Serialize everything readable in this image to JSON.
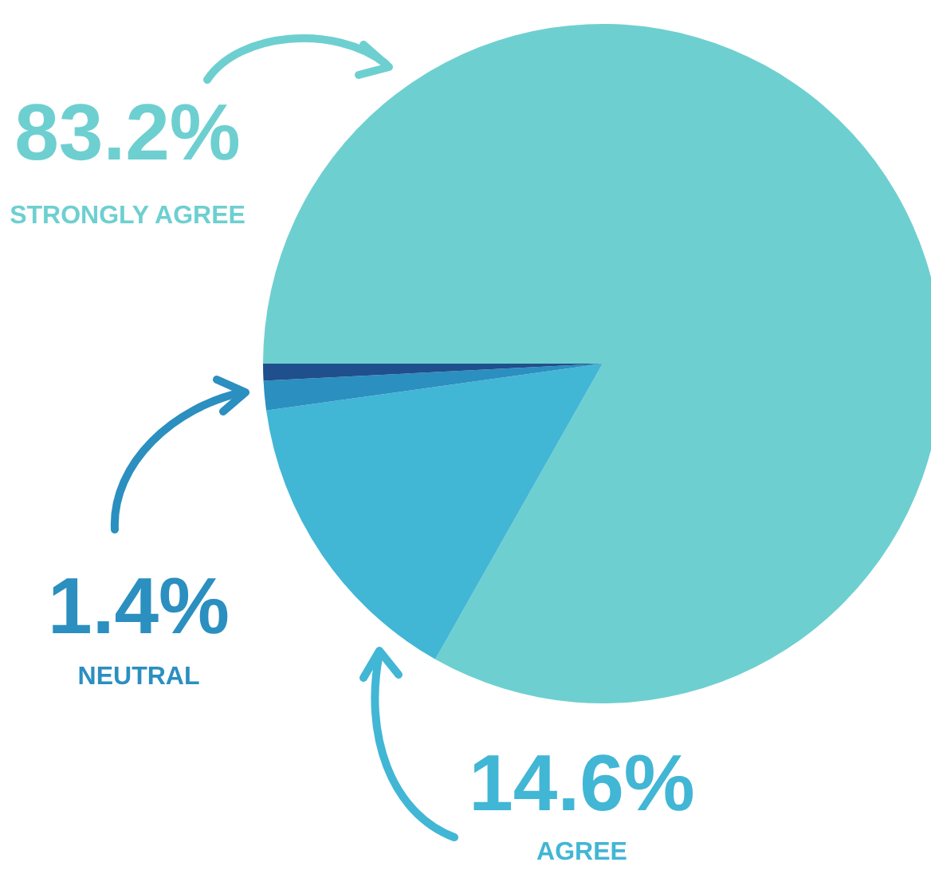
{
  "chart_data": {
    "type": "pie",
    "categories": [
      "STRONGLY AGREE",
      "AGREE",
      "NEUTRAL",
      null
    ],
    "values": [
      83.2,
      14.6,
      1.4,
      0.8
    ],
    "colors": [
      "#6ecfd0",
      "#42b6d5",
      "#2b8fc0",
      "#1f4f8c"
    ],
    "value_labels": [
      "83.2%",
      "14.6%",
      "1.4%",
      null
    ]
  }
}
